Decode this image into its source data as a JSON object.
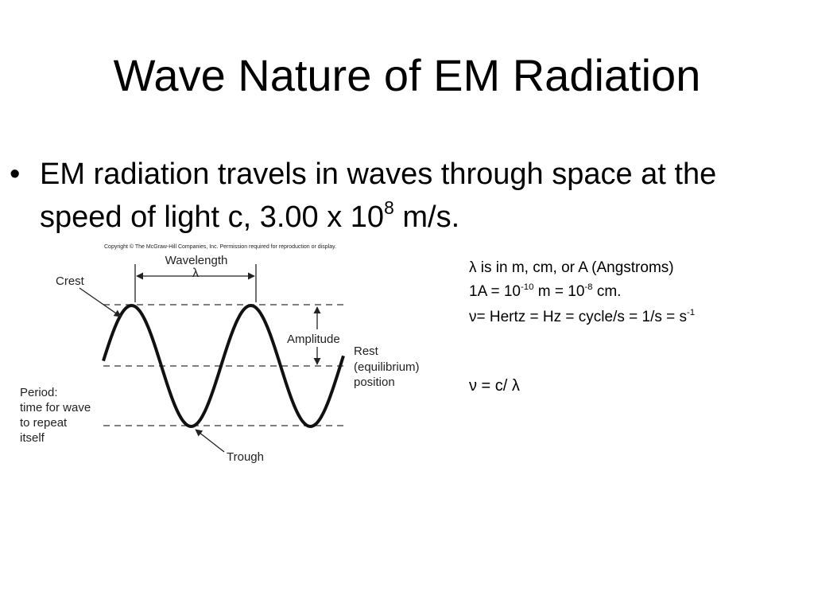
{
  "title": "Wave Nature of EM Radiation",
  "bullet": {
    "text": "EM radiation travels in waves through space at the speed of light c, 3.00 x 10",
    "sup": "8",
    "tail": "m/s."
  },
  "diagram": {
    "copyright": "Copyright © The McGraw-Hill Companies, Inc. Permission required for reproduction or display.",
    "wavelength": "Wavelength",
    "lambda": "λ",
    "crest": "Crest",
    "amplitude": "Amplitude",
    "rest": [
      "Rest",
      "(equilibrium)",
      "position"
    ],
    "period": [
      "Period:",
      "time for wave",
      "to repeat",
      "itself"
    ],
    "trough": "Trough"
  },
  "notes": {
    "line1": "λ is in m, cm, or A (Angstroms)",
    "line2": [
      "1A = 10",
      "-10",
      "m = 10",
      "-8",
      "cm."
    ],
    "line3": [
      "ν= Hertz = Hz = cycle/s = 1/s = s",
      "-1"
    ],
    "formula": "ν = c/ λ"
  }
}
